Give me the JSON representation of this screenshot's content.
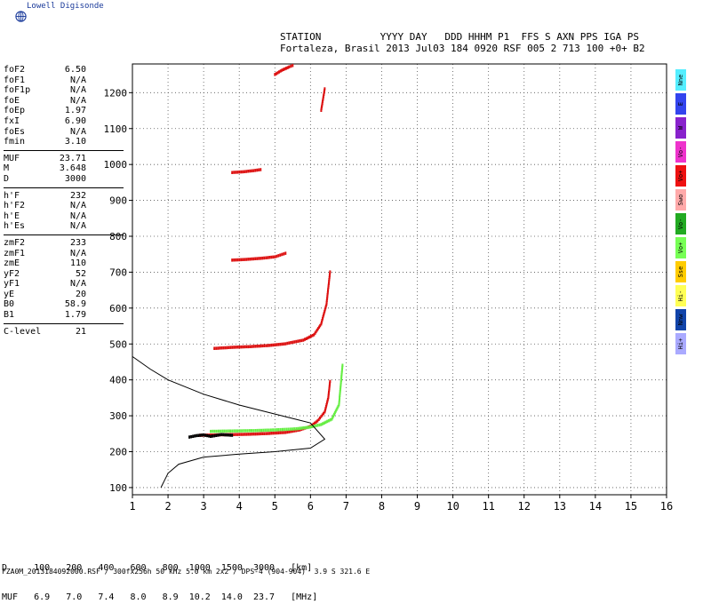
{
  "header": {
    "logo_text": "Lowell Digisonde",
    "line1": "STATION          YYYY DAY   DDD HHHM P1  FFS S AXN PPS IGA PS",
    "line2": "Fortaleza, Brasil 2013 Jul03 184 0920 RSF 005 2 713 100 +0+ B2"
  },
  "params": {
    "group1": [
      {
        "label": "foF2",
        "value": "6.50"
      },
      {
        "label": "foF1",
        "value": "N/A"
      },
      {
        "label": "foF1p",
        "value": "N/A"
      },
      {
        "label": "foE",
        "value": "N/A"
      },
      {
        "label": "foEp",
        "value": "1.97"
      },
      {
        "label": "fxI",
        "value": "6.90"
      },
      {
        "label": "foEs",
        "value": "N/A"
      },
      {
        "label": "fmin",
        "value": "3.10"
      }
    ],
    "group2": [
      {
        "label": "MUF",
        "value": "23.71"
      },
      {
        "label": "M",
        "value": "3.648"
      },
      {
        "label": "D",
        "value": "3000"
      }
    ],
    "group3": [
      {
        "label": "h'F",
        "value": "232"
      },
      {
        "label": "h'F2",
        "value": "N/A"
      },
      {
        "label": "h'E",
        "value": "N/A"
      },
      {
        "label": "h'Es",
        "value": "N/A"
      }
    ],
    "group4": [
      {
        "label": "zmF2",
        "value": "233"
      },
      {
        "label": "zmF1",
        "value": "N/A"
      },
      {
        "label": "zmE",
        "value": "110"
      },
      {
        "label": "yF2",
        "value": "52"
      },
      {
        "label": "yF1",
        "value": "N/A"
      },
      {
        "label": "yE",
        "value": "20"
      },
      {
        "label": "B0",
        "value": "58.9"
      },
      {
        "label": "B1",
        "value": "1.79"
      }
    ],
    "group5": [
      {
        "label": "C-level",
        "value": "21"
      }
    ]
  },
  "legend": [
    {
      "label": "Nne",
      "color": "#55eeff"
    },
    {
      "label": "E",
      "color": "#3344ee"
    },
    {
      "label": "W",
      "color": "#8822cc"
    },
    {
      "label": "Vo-",
      "color": "#ee33cc"
    },
    {
      "label": "Vo+",
      "color": "#ee1111"
    },
    {
      "label": "Swo",
      "color": "#ffaaaa"
    },
    {
      "label": "Vo-",
      "color": "#22aa22"
    },
    {
      "label": "Vo+",
      "color": "#77ff55"
    },
    {
      "label": "Sse",
      "color": "#ffcc00"
    },
    {
      "label": "Hi-",
      "color": "#ffff55"
    },
    {
      "label": "Nnw",
      "color": "#1144aa"
    },
    {
      "label": "Hi+",
      "color": "#aaaaff"
    }
  ],
  "muf_table": {
    "d_row": "D     100   200   400   600   800  1000  1500  3000   [km]",
    "muf_row": "MUF   6.9   7.0   7.4   8.0   8.9  10.2  14.0  23.7   [MHz]"
  },
  "footer": "FZA0M_2013184092000.RSF / 300fx256h 50 kHz 5.0 km 2x2 / DPS-4 (904-904)  3.9 S 321.6 E",
  "chart_data": {
    "type": "scatter",
    "x_ticks": [
      1,
      2,
      3,
      4,
      5,
      6,
      7,
      8,
      9,
      10,
      11,
      12,
      13,
      14,
      15,
      16
    ],
    "y_ticks": [
      100,
      200,
      300,
      400,
      500,
      600,
      700,
      800,
      900,
      1000,
      1100,
      1200
    ],
    "xlim": [
      1,
      16
    ],
    "ylim": [
      80,
      1280
    ],
    "xlabel": "",
    "ylabel": "",
    "grid": true,
    "traces": [
      {
        "name": "F-layer O-mode (1 hop)",
        "color": "#dd1111",
        "x": [
          2.9,
          3.3,
          3.8,
          4.3,
          4.8,
          5.3,
          5.7,
          6.0,
          6.2,
          6.4,
          6.5,
          6.55
        ],
        "y": [
          245,
          246,
          247,
          248,
          250,
          253,
          260,
          270,
          285,
          310,
          350,
          395
        ]
      },
      {
        "name": "F-layer X-mode (1 hop)",
        "color": "#66ee44",
        "x": [
          3.2,
          3.8,
          4.4,
          5.0,
          5.6,
          6.0,
          6.3,
          6.6,
          6.8,
          6.9
        ],
        "y": [
          256,
          257,
          258,
          260,
          263,
          268,
          275,
          290,
          330,
          440
        ]
      },
      {
        "name": "F-layer 2 hop",
        "color": "#dd1111",
        "x": [
          3.3,
          3.8,
          4.3,
          4.8,
          5.3,
          5.8,
          6.1,
          6.3,
          6.45,
          6.55
        ],
        "y": [
          487,
          490,
          492,
          495,
          500,
          510,
          525,
          555,
          610,
          700
        ]
      },
      {
        "name": "F-layer 3 hop",
        "color": "#dd1111",
        "x": [
          3.8,
          4.2,
          4.6,
          5.0,
          5.3
        ],
        "y": [
          733,
          735,
          738,
          742,
          752
        ]
      },
      {
        "name": "F-layer 4 hop",
        "color": "#dd1111",
        "x": [
          3.8,
          4.1,
          4.4,
          4.6
        ],
        "y": [
          977,
          979,
          982,
          985
        ]
      },
      {
        "name": "F-layer 5 hop",
        "color": "#dd1111",
        "x": [
          5.0,
          5.2,
          5.4,
          5.5
        ],
        "y": [
          1250,
          1262,
          1271,
          1275
        ]
      },
      {
        "name": "upper cusp trace",
        "color": "#dd1111",
        "x": [
          6.3,
          6.35,
          6.4
        ],
        "y": [
          1150,
          1180,
          1210
        ]
      },
      {
        "name": "Es / low echoes",
        "color": "#000000",
        "x": [
          2.6,
          2.8,
          3.0,
          3.2,
          3.5,
          3.8
        ],
        "y": [
          240,
          244,
          246,
          242,
          247,
          245
        ]
      }
    ],
    "profile_curve": {
      "name": "electron density profile",
      "x": [
        1.0,
        1.5,
        2.0,
        3.0,
        4.0,
        5.0,
        5.6,
        6.0,
        6.4,
        6.0,
        5.0,
        4.0,
        3.0,
        2.3,
        2.0,
        1.9,
        1.8
      ],
      "y": [
        465,
        430,
        400,
        360,
        330,
        305,
        290,
        280,
        235,
        210,
        200,
        193,
        185,
        165,
        140,
        120,
        100
      ]
    }
  }
}
